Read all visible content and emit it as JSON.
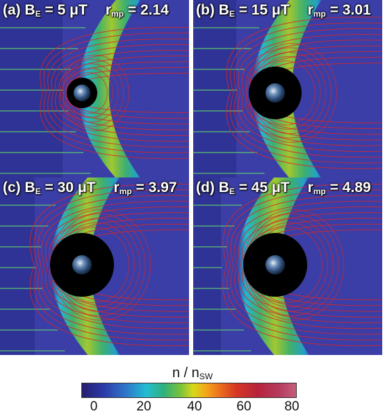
{
  "panels": [
    {
      "id": "a",
      "letter": "(a)",
      "be_label": "B",
      "be_sub": "E",
      "be_value": "= 5 μT",
      "rmp_label": "r",
      "rmp_sub": "mp",
      "rmp_value": "= 2.14"
    },
    {
      "id": "b",
      "letter": "(b)",
      "be_label": "B",
      "be_sub": "E",
      "be_value": "= 15 μT",
      "rmp_label": "r",
      "rmp_sub": "mp",
      "rmp_value": "= 3.01"
    },
    {
      "id": "c",
      "letter": "(c)",
      "be_label": "B",
      "be_sub": "E",
      "be_value": "= 30 μT",
      "rmp_label": "r",
      "rmp_sub": "mp",
      "rmp_value": "= 3.97"
    },
    {
      "id": "d",
      "letter": "(d)",
      "be_label": "B",
      "be_sub": "E",
      "be_value": "= 45 μT",
      "rmp_label": "r",
      "rmp_sub": "mp",
      "rmp_value": "= 4.89"
    }
  ],
  "colorbar": {
    "title_n": "n / n",
    "title_sub": "SW",
    "ticks": [
      "0",
      "20",
      "40",
      "60",
      "80"
    ]
  },
  "colors": {
    "background_blue": "#3a3ea6",
    "field_line_red": "#d8262c",
    "field_line_green": "#5fd36a",
    "earth_shadow": "#000000"
  }
}
